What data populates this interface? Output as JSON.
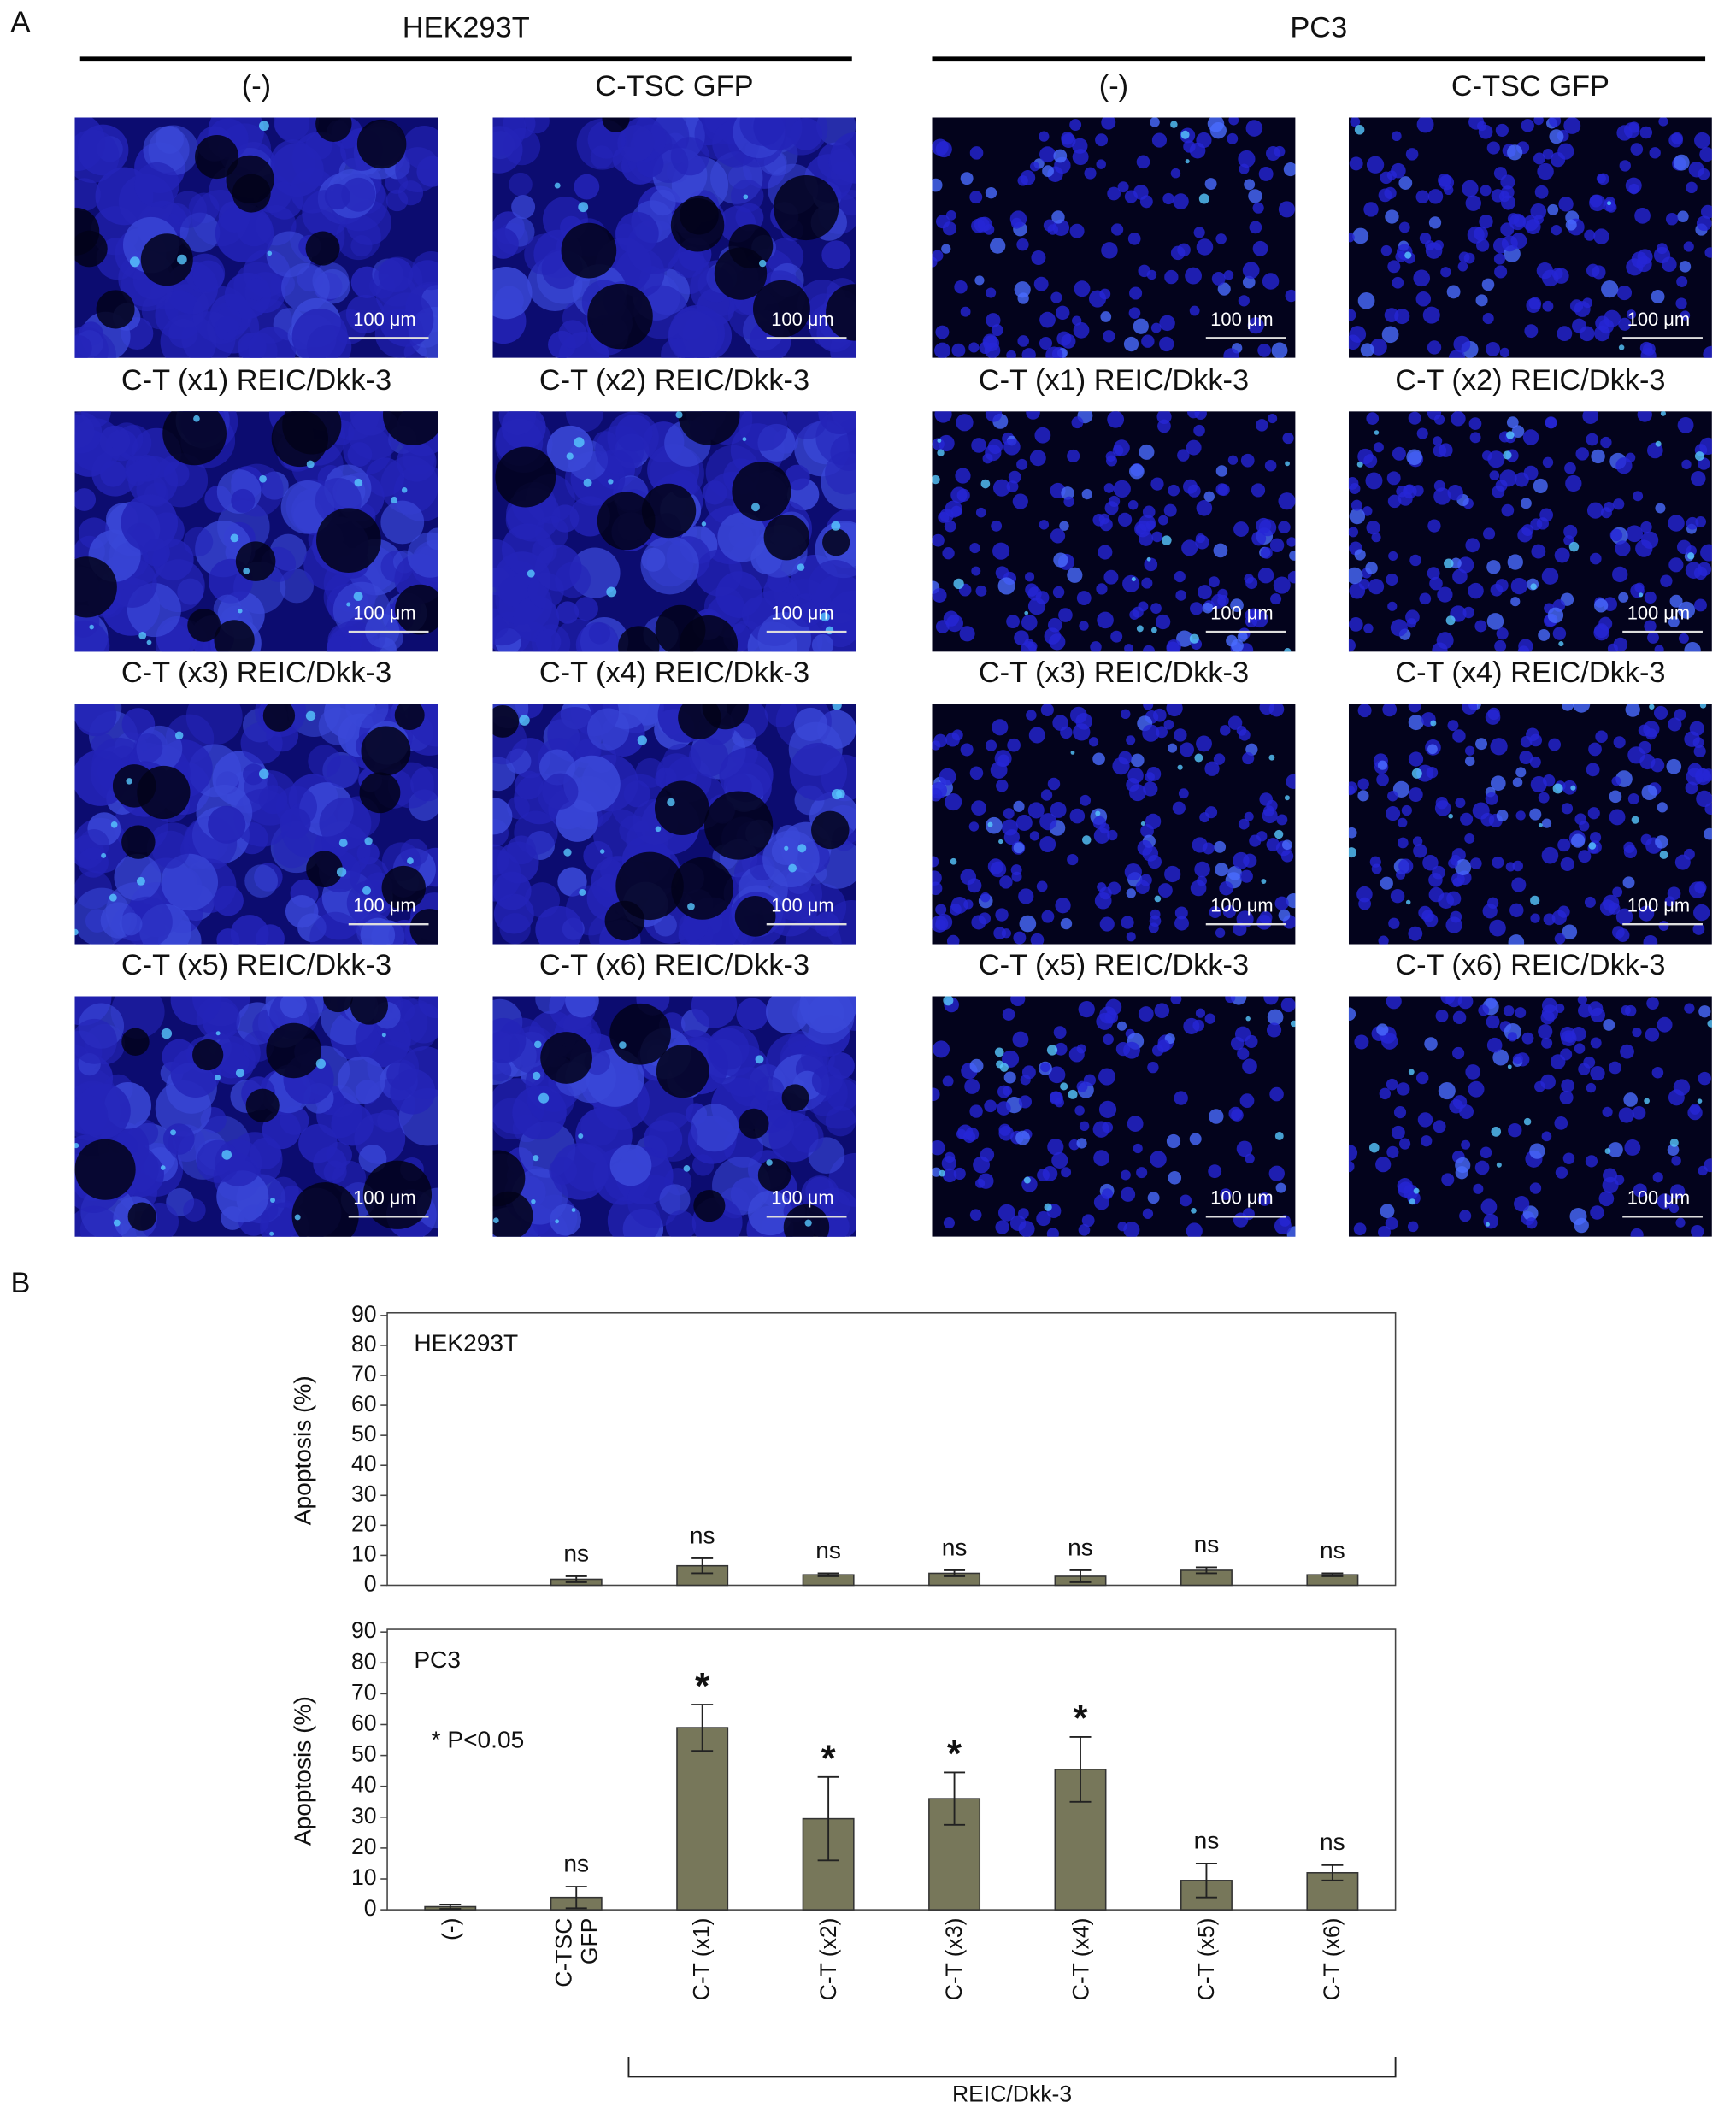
{
  "panel_a": {
    "label": "A",
    "scale_bar": "100 μm",
    "groups": [
      {
        "title": "HEK293T",
        "images": [
          "(-)",
          "C-TSC GFP",
          "C-T (x1) REIC/Dkk-3",
          "C-T (x2) REIC/Dkk-3",
          "C-T (x3) REIC/Dkk-3",
          "C-T (x4) REIC/Dkk-3",
          "C-T (x5) REIC/Dkk-3",
          "C-T (x6) REIC/Dkk-3"
        ]
      },
      {
        "title": "PC3",
        "images": [
          "(-)",
          "C-TSC GFP",
          "C-T (x1) REIC/Dkk-3",
          "C-T (x2) REIC/Dkk-3",
          "C-T (x3) REIC/Dkk-3",
          "C-T (x4) REIC/Dkk-3",
          "C-T (x5) REIC/Dkk-3",
          "C-T (x6) REIC/Dkk-3"
        ]
      }
    ]
  },
  "panel_b_label": "B",
  "chart_data": [
    {
      "type": "bar",
      "title": "HEK293T",
      "ylabel": "Apoptosis (%)",
      "categories": [
        null,
        null,
        null,
        null,
        null,
        null,
        null,
        null
      ],
      "values": [
        0,
        2,
        6.5,
        3.5,
        4,
        3,
        5,
        3.5
      ],
      "errors": [
        null,
        1,
        2.5,
        0.5,
        1,
        2,
        1,
        0.5
      ],
      "annotations": [
        null,
        "ns",
        "ns",
        "ns",
        "ns",
        "ns",
        "ns",
        "ns"
      ],
      "color": "#77775a",
      "ylim": [
        0,
        90
      ],
      "yticks": [
        0,
        10,
        20,
        30,
        40,
        50,
        60,
        70,
        80,
        90
      ]
    },
    {
      "type": "bar",
      "title": "PC3",
      "ylabel": "Apoptosis (%)",
      "note": "* P<0.05",
      "categories": [
        "(-)",
        "C-TSC GFP",
        "C-T (x1)",
        "C-T (x2)",
        "C-T (x3)",
        "C-T (x4)",
        "C-T (x5)",
        "C-T (x6)"
      ],
      "group_label": "REIC/Dkk-3",
      "values": [
        1,
        4,
        59,
        29.5,
        36,
        45.5,
        9.5,
        12
      ],
      "errors": [
        0.7,
        3.5,
        7.5,
        13.5,
        8.5,
        10.5,
        5.5,
        2.5
      ],
      "annotations": [
        null,
        "ns",
        "*",
        "*",
        "*",
        "*",
        "ns",
        "ns"
      ],
      "color": "#77775a",
      "ylim": [
        0,
        90
      ],
      "yticks": [
        0,
        10,
        20,
        30,
        40,
        50,
        60,
        70,
        80,
        90
      ]
    }
  ]
}
